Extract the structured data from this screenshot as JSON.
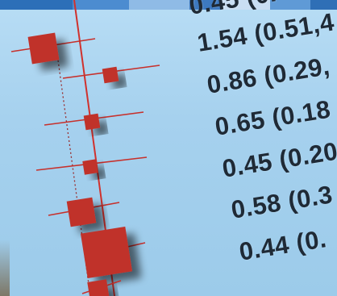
{
  "estimates": [
    {
      "label": "0.45 (0.",
      "sizeRank": 0
    },
    {
      "label": "1.54 (0.51,4",
      "sizeRank": 3
    },
    {
      "label": "0.86 (0.29,",
      "sizeRank": 1
    },
    {
      "label": "0.65 (0.18",
      "sizeRank": 1
    },
    {
      "label": "0.45 (0.20",
      "sizeRank": 1
    },
    {
      "label": "0.58 (0.3",
      "sizeRank": 2
    },
    {
      "label": "0.44 (0.",
      "sizeRank": 4
    }
  ],
  "colors": {
    "marker": "#c0302b",
    "line": "#c7302b",
    "refLine": "#d0312d",
    "text": "#1f2a36",
    "background": "#a9d3ef",
    "topbar": [
      "#2c6fb8",
      "#4c8cd0",
      "#8fbbe6",
      "#3d79c0",
      "#c9def3",
      "#5f9ad6",
      "#2f6fb6"
    ]
  }
}
